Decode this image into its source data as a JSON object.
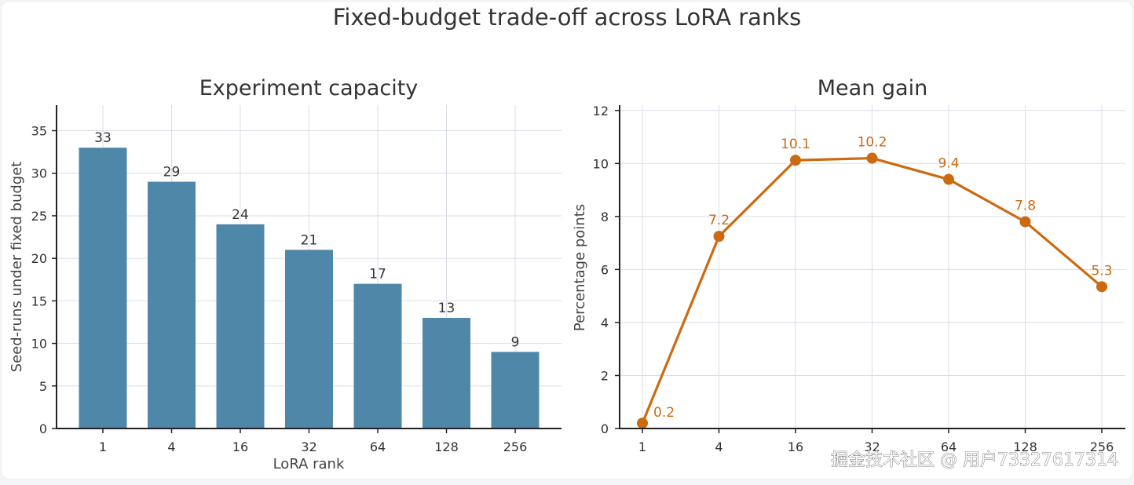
{
  "figure": {
    "title": "Fixed-budget trade-off across LoRA ranks",
    "watermark": "掘金技术社区 @ 用户73327617314"
  },
  "colors": {
    "bar": "#4e87a8",
    "line": "#cc6a12",
    "text": "#333333",
    "label": "#444444",
    "grid": "#d9dee6",
    "axis": "#222222"
  },
  "chart_data": [
    {
      "type": "bar",
      "title": "Experiment capacity",
      "xlabel": "LoRA rank",
      "ylabel": "Seed-runs under fixed budget",
      "categories": [
        "1",
        "4",
        "16",
        "32",
        "64",
        "128",
        "256"
      ],
      "values": [
        33,
        29,
        24,
        21,
        17,
        13,
        9
      ],
      "value_labels": [
        "33",
        "29",
        "24",
        "21",
        "17",
        "13",
        "9"
      ],
      "ylim": [
        0,
        38
      ],
      "yticks": [
        0,
        5,
        10,
        15,
        20,
        25,
        30,
        35
      ],
      "ytick_labels": [
        "0",
        "5",
        "10",
        "15",
        "20",
        "25",
        "30",
        "35"
      ],
      "grid": true
    },
    {
      "type": "line",
      "title": "Mean gain",
      "xlabel": "",
      "ylabel": "Percentage points",
      "categories": [
        "1",
        "4",
        "16",
        "32",
        "64",
        "128",
        "256"
      ],
      "values": [
        0.2,
        7.25,
        10.12,
        10.2,
        9.4,
        7.8,
        5.35
      ],
      "value_labels": [
        "0.2",
        "7.2",
        "10.1",
        "10.2",
        "9.4",
        "7.8",
        "5.3"
      ],
      "ylim": [
        0,
        12.2
      ],
      "yticks": [
        0,
        2,
        4,
        6,
        8,
        10,
        12
      ],
      "ytick_labels": [
        "0",
        "2",
        "4",
        "6",
        "8",
        "10",
        "12"
      ],
      "grid": true
    }
  ]
}
